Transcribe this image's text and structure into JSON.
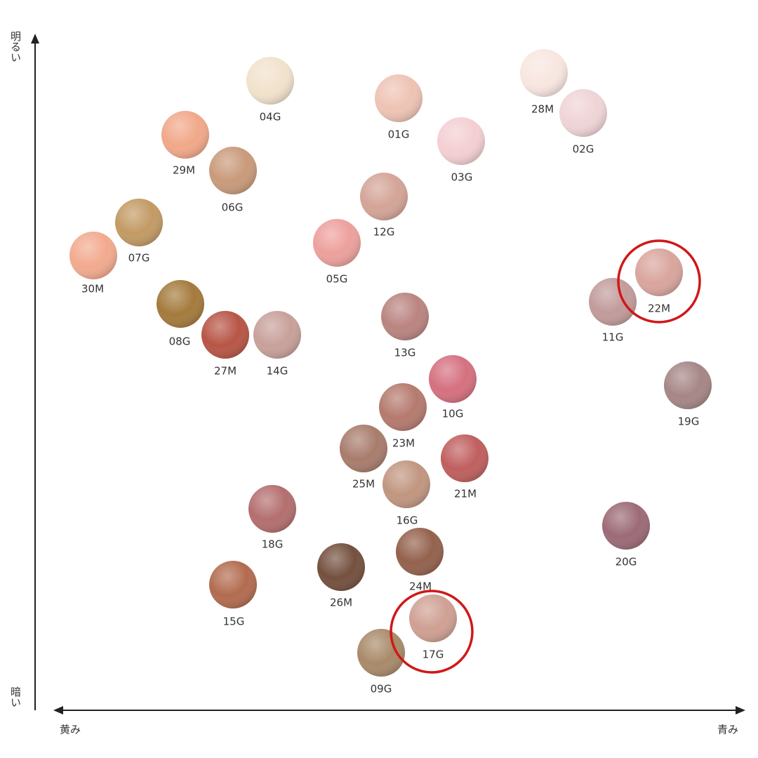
{
  "axes": {
    "top": "明るい",
    "bottom": "暗い",
    "left": "黄み",
    "right": "青み"
  },
  "swatches": [
    {
      "label": "04G",
      "color": "#f1e2cc"
    },
    {
      "label": "01G",
      "color": "#eec3b4"
    },
    {
      "label": "28M",
      "color": "#f8e6e0"
    },
    {
      "label": "02G",
      "color": "#efd4d6"
    },
    {
      "label": "29M",
      "color": "#f1a889"
    },
    {
      "label": "06G",
      "color": "#c99a7a"
    },
    {
      "label": "03G",
      "color": "#f3cfd2"
    },
    {
      "label": "12G",
      "color": "#d4a497"
    },
    {
      "label": "07G",
      "color": "#c29a64"
    },
    {
      "label": "30M",
      "color": "#f2aa8e"
    },
    {
      "label": "05G",
      "color": "#eda09c"
    },
    {
      "label": "22M",
      "color": "#d9a59d"
    },
    {
      "label": "11G",
      "color": "#c29b9b"
    },
    {
      "label": "08G",
      "color": "#a47a3c"
    },
    {
      "label": "13G",
      "color": "#ba8480"
    },
    {
      "label": "27M",
      "color": "#b75546"
    },
    {
      "label": "14G",
      "color": "#c8a09a"
    },
    {
      "label": "10G",
      "color": "#d5707f"
    },
    {
      "label": "19G",
      "color": "#a68686"
    },
    {
      "label": "23M",
      "color": "#b57a6e"
    },
    {
      "label": "25M",
      "color": "#a87c6c"
    },
    {
      "label": "21M",
      "color": "#bf5f5e"
    },
    {
      "label": "16G",
      "color": "#c19680"
    },
    {
      "label": "18G",
      "color": "#b46e6e"
    },
    {
      "label": "20G",
      "color": "#9c6a76"
    },
    {
      "label": "24M",
      "color": "#94614d"
    },
    {
      "label": "26M",
      "color": "#74503e"
    },
    {
      "label": "15G",
      "color": "#b26b4f"
    },
    {
      "label": "17G",
      "color": "#cfa093"
    },
    {
      "label": "09G",
      "color": "#a88a69"
    }
  ]
}
